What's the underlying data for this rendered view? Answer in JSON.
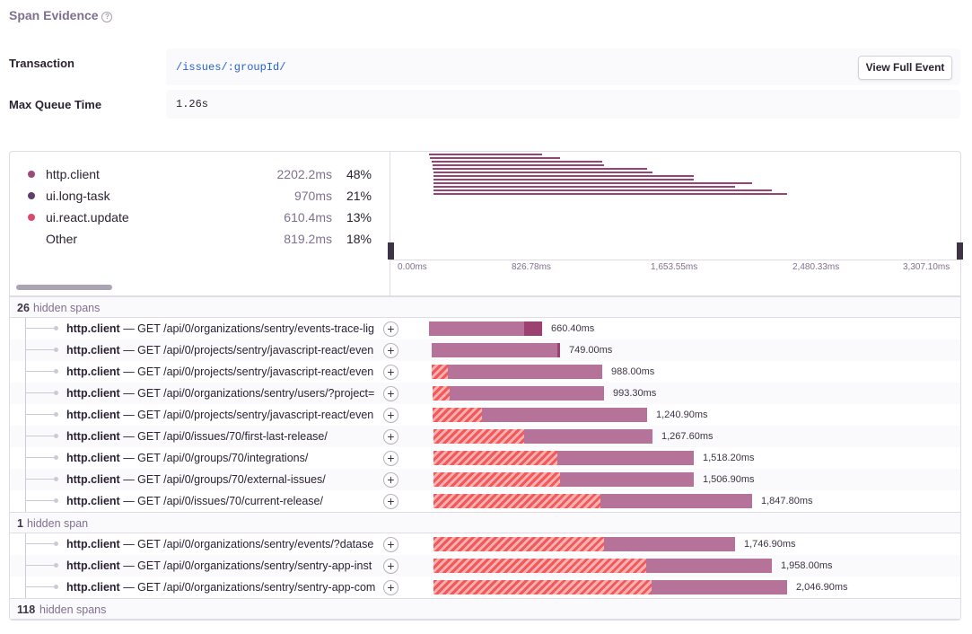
{
  "header": {
    "title": "Span Evidence"
  },
  "details": {
    "rows": [
      {
        "label": "Transaction",
        "value": "/issues/:groupId/"
      },
      {
        "label": "Max Queue Time",
        "value": "1.26s"
      }
    ],
    "button": "View Full Event"
  },
  "legend": [
    {
      "name": "http.client",
      "duration": "2202.2ms",
      "percent": "48%"
    },
    {
      "name": "ui.long-task",
      "duration": "970ms",
      "percent": "21%"
    },
    {
      "name": "ui.react.update",
      "duration": "610.4ms",
      "percent": "13%"
    },
    {
      "name": "Other",
      "duration": "819.2ms",
      "percent": "18%"
    }
  ],
  "minimap": {
    "ticks": [
      "0.00ms",
      "826.78ms",
      "1,653.55ms",
      "2,480.33ms",
      "3,307.10ms"
    ]
  },
  "tree": [
    {
      "count": "26",
      "label": "hidden spans"
    },
    {
      "op": "http.client",
      "description": " — GET /api/0/organizations/sentry/events-trace-lig",
      "duration": "660.40ms"
    },
    {
      "op": "http.client",
      "description": " — GET /api/0/projects/sentry/javascript-react/even",
      "duration": "749.00ms"
    },
    {
      "op": "http.client",
      "description": " — GET /api/0/projects/sentry/javascript-react/even",
      "duration": "988.00ms"
    },
    {
      "op": "http.client",
      "description": " — GET /api/0/organizations/sentry/users/?project=",
      "duration": "993.30ms"
    },
    {
      "op": "http.client",
      "description": " — GET /api/0/projects/sentry/javascript-react/even",
      "duration": "1,240.90ms"
    },
    {
      "op": "http.client",
      "description": " — GET /api/0/issues/70/first-last-release/",
      "duration": "1,267.60ms"
    },
    {
      "op": "http.client",
      "description": " — GET /api/0/groups/70/integrations/",
      "duration": "1,518.20ms"
    },
    {
      "op": "http.client",
      "description": " — GET /api/0/groups/70/external-issues/",
      "duration": "1,506.90ms"
    },
    {
      "op": "http.client",
      "description": " — GET /api/0/issues/70/current-release/",
      "duration": "1,847.80ms"
    },
    {
      "count": "1",
      "label": "hidden span"
    },
    {
      "op": "http.client",
      "description": " — GET /api/0/organizations/sentry/events/?datase",
      "duration": "1,746.90ms"
    },
    {
      "op": "http.client",
      "description": " — GET /api/0/organizations/sentry/sentry-app-inst",
      "duration": "1,958.00ms"
    },
    {
      "op": "http.client",
      "description": " — GET /api/0/organizations/sentry/sentry-app-com",
      "duration": "2,046.90ms"
    },
    {
      "count": "118",
      "label": "hidden spans"
    }
  ]
}
